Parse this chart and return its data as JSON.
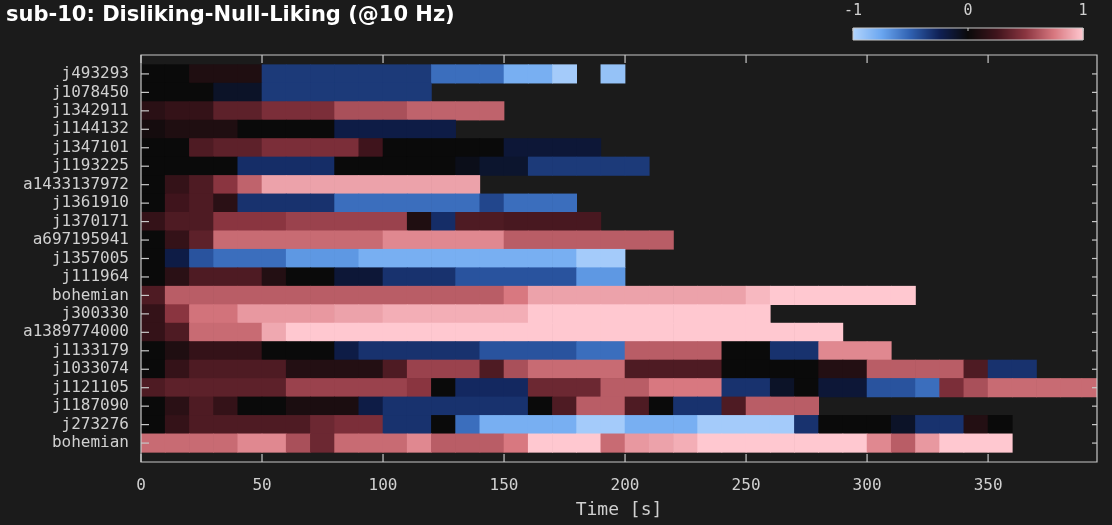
{
  "chart_data": {
    "type": "heatmap",
    "title": "sub-10: Disliking-Null-Liking (@10 Hz)",
    "xlabel": "Time [s]",
    "x": [
      5,
      15,
      25,
      35,
      45,
      55,
      65,
      75,
      85,
      95,
      105,
      115,
      125,
      135,
      145,
      155,
      165,
      175,
      185,
      195,
      205,
      215,
      225,
      235,
      245,
      255,
      265,
      275,
      285,
      295,
      305,
      315,
      325,
      335,
      345,
      355,
      365,
      375,
      385,
      392.5
    ],
    "xlim": [
      0,
      395
    ],
    "xticks": [
      0,
      50,
      100,
      150,
      200,
      250,
      300,
      350
    ],
    "y_categories": [
      "j493293",
      "j1078450",
      "j1342911",
      "j1144132",
      "j1347101",
      "j1193225",
      "a1433137972",
      "j1361910",
      "j1370171",
      "a697195941",
      "j1357005",
      "j111964",
      "bohemian",
      "j300330",
      "a1389774000",
      "j1133179",
      "j1033074",
      "j1121105",
      "j1187090",
      "j273276",
      "bohemian"
    ],
    "clim": [
      -1,
      1
    ],
    "cticks": [
      -1,
      0,
      1
    ],
    "cells": [
      [
        0,
        0,
        0.1,
        0.1,
        0.1,
        -0.35,
        -0.35,
        -0.35,
        -0.35,
        -0.35,
        -0.35,
        -0.35,
        -0.55,
        -0.55,
        -0.55,
        -0.8,
        -0.8,
        -0.95,
        null,
        -0.9,
        null,
        null,
        null,
        null,
        null,
        null,
        null,
        null,
        null,
        null,
        null,
        null,
        null,
        null,
        null,
        null,
        null,
        null,
        null,
        null
      ],
      [
        0,
        0,
        0,
        -0.1,
        -0.1,
        -0.35,
        -0.35,
        -0.35,
        -0.35,
        -0.35,
        -0.35,
        -0.35,
        null,
        null,
        null,
        null,
        null,
        null,
        null,
        null,
        null,
        null,
        null,
        null,
        null,
        null,
        null,
        null,
        null,
        null,
        null,
        null,
        null,
        null,
        null,
        null,
        null,
        null,
        null,
        null
      ],
      [
        0.15,
        0.2,
        0.2,
        0.35,
        0.35,
        0.45,
        0.45,
        0.45,
        0.6,
        0.6,
        0.6,
        0.67,
        0.67,
        0.67,
        0.67,
        null,
        null,
        null,
        null,
        null,
        null,
        null,
        null,
        null,
        null,
        null,
        null,
        null,
        null,
        null,
        null,
        null,
        null,
        null,
        null,
        null,
        null,
        null,
        null,
        null
      ],
      [
        0.05,
        0.1,
        0.1,
        0.1,
        0,
        0,
        0,
        0,
        -0.2,
        -0.2,
        -0.2,
        -0.2,
        -0.2,
        null,
        null,
        null,
        null,
        null,
        null,
        null,
        null,
        null,
        null,
        null,
        null,
        null,
        null,
        null,
        null,
        null,
        null,
        null,
        null,
        null,
        null,
        null,
        null,
        null,
        null,
        null
      ],
      [
        0,
        0,
        0.3,
        0.35,
        0.35,
        0.45,
        0.45,
        0.45,
        0.45,
        0.25,
        0,
        0,
        0,
        0,
        0,
        -0.15,
        -0.15,
        -0.15,
        -0.15,
        null,
        null,
        null,
        null,
        null,
        null,
        null,
        null,
        null,
        null,
        null,
        null,
        null,
        null,
        null,
        null,
        null,
        null,
        null,
        null,
        null
      ],
      [
        0,
        0,
        0,
        0,
        -0.3,
        -0.3,
        -0.3,
        -0.3,
        0,
        0,
        0,
        0,
        0,
        -0.05,
        -0.12,
        -0.12,
        -0.35,
        -0.35,
        -0.35,
        -0.35,
        -0.35,
        null,
        null,
        null,
        null,
        null,
        null,
        null,
        null,
        null,
        null,
        null,
        null,
        null,
        null,
        null,
        null,
        null,
        null,
        null
      ],
      [
        0,
        0.2,
        0.3,
        0.5,
        0.67,
        0.88,
        0.88,
        0.88,
        0.88,
        0.88,
        0.88,
        0.88,
        0.88,
        0.88,
        null,
        null,
        null,
        null,
        null,
        null,
        null,
        null,
        null,
        null,
        null,
        null,
        null,
        null,
        null,
        null,
        null,
        null,
        null,
        null,
        null,
        null,
        null,
        null,
        null,
        null
      ],
      [
        0,
        0.25,
        0.3,
        0.15,
        -0.32,
        -0.32,
        -0.32,
        -0.32,
        -0.55,
        -0.55,
        -0.55,
        -0.55,
        -0.55,
        -0.55,
        -0.4,
        -0.55,
        -0.55,
        -0.55,
        null,
        null,
        null,
        null,
        null,
        null,
        null,
        null,
        null,
        null,
        null,
        null,
        null,
        null,
        null,
        null,
        null,
        null,
        null,
        null,
        null,
        null
      ],
      [
        0.2,
        0.3,
        0.3,
        0.5,
        0.5,
        0.5,
        0.55,
        0.55,
        0.55,
        0.55,
        0.55,
        0.1,
        -0.3,
        0.3,
        0.3,
        0.28,
        0.28,
        0.28,
        0.28,
        null,
        null,
        null,
        null,
        null,
        null,
        null,
        null,
        null,
        null,
        null,
        null,
        null,
        null,
        null,
        null,
        null,
        null,
        null,
        null,
        null
      ],
      [
        0,
        0.2,
        0.35,
        0.7,
        0.7,
        0.7,
        0.7,
        0.7,
        0.7,
        0.7,
        0.8,
        0.8,
        0.8,
        0.8,
        0.8,
        0.65,
        0.65,
        0.65,
        0.65,
        0.65,
        0.65,
        0.65,
        null,
        null,
        null,
        null,
        null,
        null,
        null,
        null,
        null,
        null,
        null,
        null,
        null,
        null,
        null,
        null,
        null,
        null
      ],
      [
        0,
        -0.2,
        -0.45,
        -0.55,
        -0.55,
        -0.55,
        -0.7,
        -0.7,
        -0.7,
        -0.8,
        -0.8,
        -0.8,
        -0.8,
        -0.8,
        -0.8,
        -0.8,
        -0.8,
        -0.8,
        -0.95,
        -0.95,
        null,
        null,
        null,
        null,
        null,
        null,
        null,
        null,
        null,
        null,
        null,
        null,
        null,
        null,
        null,
        null,
        null,
        null,
        null,
        null
      ],
      [
        0,
        0.15,
        0.3,
        0.3,
        0.3,
        0.12,
        0,
        0,
        -0.15,
        -0.15,
        -0.32,
        -0.32,
        -0.32,
        -0.45,
        -0.45,
        -0.45,
        -0.45,
        -0.45,
        -0.7,
        -0.7,
        null,
        null,
        null,
        null,
        null,
        null,
        null,
        null,
        null,
        null,
        null,
        null,
        null,
        null,
        null,
        null,
        null,
        null,
        null,
        null
      ],
      [
        0.3,
        0.65,
        0.65,
        0.65,
        0.65,
        0.65,
        0.65,
        0.65,
        0.65,
        0.65,
        0.65,
        0.65,
        0.65,
        0.65,
        0.65,
        0.75,
        0.88,
        0.88,
        0.88,
        0.88,
        0.88,
        0.88,
        0.88,
        0.88,
        0.88,
        0.95,
        1,
        1,
        1,
        1,
        1,
        1,
        null,
        null,
        null,
        null,
        null,
        null,
        null,
        null
      ],
      [
        0.2,
        0.5,
        0.73,
        0.73,
        0.85,
        0.85,
        0.85,
        0.85,
        0.88,
        0.88,
        0.92,
        0.92,
        0.92,
        0.92,
        0.92,
        0.92,
        1,
        1,
        1,
        1,
        1,
        1,
        1,
        1,
        1,
        1,
        null,
        null,
        null,
        null,
        null,
        null,
        null,
        null,
        null,
        null,
        null,
        null,
        null,
        null
      ],
      [
        0.2,
        0.3,
        0.7,
        0.7,
        0.7,
        0.9,
        1,
        1,
        1,
        1,
        1,
        1,
        1,
        1,
        1,
        1,
        1,
        1,
        1,
        1,
        1,
        1,
        1,
        1,
        1,
        1,
        1,
        1,
        1,
        null,
        null,
        null,
        null,
        null,
        null,
        null,
        null,
        null,
        null,
        null
      ],
      [
        0,
        0.1,
        0.2,
        0.2,
        0.2,
        0,
        0,
        0,
        -0.2,
        -0.32,
        -0.32,
        -0.32,
        -0.32,
        -0.32,
        -0.45,
        -0.45,
        -0.45,
        -0.45,
        -0.55,
        -0.55,
        0.65,
        0.65,
        0.65,
        0.65,
        0,
        0,
        -0.32,
        -0.32,
        0.8,
        0.8,
        0.8,
        null,
        null,
        null,
        null,
        null,
        null,
        null,
        null,
        null
      ],
      [
        0,
        0.2,
        0.3,
        0.3,
        0.3,
        0.3,
        0.12,
        0.12,
        0.12,
        0.12,
        0.3,
        0.55,
        0.55,
        0.55,
        0.3,
        0.6,
        0.7,
        0.7,
        0.7,
        0.7,
        0.3,
        0.3,
        0.3,
        0.3,
        0,
        0,
        0,
        0,
        0.12,
        0.12,
        0.65,
        0.65,
        0.65,
        0.65,
        0.3,
        -0.32,
        -0.32,
        null,
        null,
        null
      ],
      [
        0.3,
        0.35,
        0.35,
        0.35,
        0.35,
        0.35,
        0.55,
        0.55,
        0.55,
        0.55,
        0.55,
        0.5,
        0,
        -0.28,
        -0.28,
        -0.28,
        0.4,
        0.4,
        0.4,
        0.65,
        0.65,
        0.75,
        0.75,
        0.75,
        -0.32,
        -0.32,
        -0.1,
        0,
        -0.15,
        -0.15,
        -0.45,
        -0.45,
        -0.55,
        0.45,
        0.6,
        0.7,
        0.7,
        0.7,
        0.7,
        0.7
      ],
      [
        0,
        0.15,
        0.3,
        0.2,
        0,
        0,
        0.08,
        0.08,
        0.08,
        -0.2,
        -0.32,
        -0.32,
        -0.32,
        -0.32,
        -0.32,
        -0.32,
        0,
        0.3,
        0.65,
        0.65,
        0.3,
        0,
        -0.32,
        -0.32,
        0.3,
        0.65,
        0.65,
        0.65,
        null,
        null,
        null,
        null,
        null,
        null,
        null,
        null,
        null,
        null,
        null,
        null
      ],
      [
        0,
        0.2,
        0.3,
        0.3,
        0.3,
        0.3,
        0.3,
        0.4,
        0.45,
        0.45,
        -0.32,
        -0.32,
        0,
        -0.55,
        -0.8,
        -0.8,
        -0.8,
        -0.8,
        -0.95,
        -0.95,
        -0.8,
        -0.8,
        -0.8,
        -0.95,
        -0.95,
        -0.95,
        -0.95,
        -0.32,
        0,
        0,
        0,
        -0.1,
        -0.32,
        -0.32,
        0.12,
        0,
        null,
        null,
        null,
        null
      ],
      [
        0.7,
        0.7,
        0.7,
        0.7,
        0.8,
        0.8,
        0.6,
        0.4,
        0.7,
        0.7,
        0.7,
        0.8,
        0.65,
        0.65,
        0.65,
        0.75,
        1,
        1,
        1,
        0.7,
        0.85,
        0.88,
        0.92,
        1,
        1,
        1,
        1,
        1,
        1,
        1,
        0.8,
        0.65,
        0.85,
        1,
        1,
        1,
        null,
        null,
        null,
        null
      ]
    ]
  }
}
